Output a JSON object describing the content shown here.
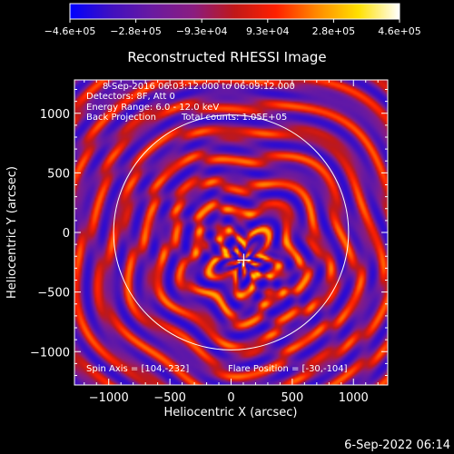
{
  "timestamp": "6-Sep-2022 06:14",
  "chart_data": {
    "type": "heatmap",
    "title": "Reconstructed RHESSI Image",
    "xlabel": "Heliocentric X (arcsec)",
    "ylabel": "Heliocentric Y (arcsec)",
    "xlim": [
      -1280,
      1280
    ],
    "ylim": [
      -1280,
      1280
    ],
    "xticks": [
      {
        "value": -1000,
        "label": "−1000"
      },
      {
        "value": -500,
        "label": "−500"
      },
      {
        "value": 0,
        "label": "0"
      },
      {
        "value": 500,
        "label": "500"
      },
      {
        "value": 1000,
        "label": "1000"
      }
    ],
    "yticks": [
      {
        "value": -1000,
        "label": "−1000"
      },
      {
        "value": -500,
        "label": "−500"
      },
      {
        "value": 0,
        "label": "0"
      },
      {
        "value": 500,
        "label": "500"
      },
      {
        "value": 1000,
        "label": "1000"
      }
    ],
    "colorbar": {
      "min": -460000,
      "max": 460000,
      "labels": [
        "−4.6e+05",
        "−2.8e+05",
        "−9.3e+04",
        "9.3e+04",
        "2.8e+05",
        "4.6e+05"
      ],
      "colors": [
        "#0000ff",
        "#4010c0",
        "#6a1aa0",
        "#8a1c80",
        "#c01818",
        "#ff2000",
        "#ff8a00",
        "#ffe000",
        "#ffffff"
      ]
    },
    "annotations": {
      "time_range": "8-Sep-2016 06:03:12.000 to 06:09:12.000",
      "detectors": "Detectors: 8F, Att 0",
      "energy_range": "Energy Range: 6.0 - 12.0 keV",
      "method": "Back Projection",
      "total_counts": "Total counts: 1.05E+05",
      "spin_axis": "Spin Axis = [104,-232]",
      "flare_position": "Flare Position = [-30,-104]"
    },
    "solar_limb_radius": 960,
    "spin_axis": [
      104,
      -232
    ],
    "marker": [
      104,
      -232
    ]
  }
}
